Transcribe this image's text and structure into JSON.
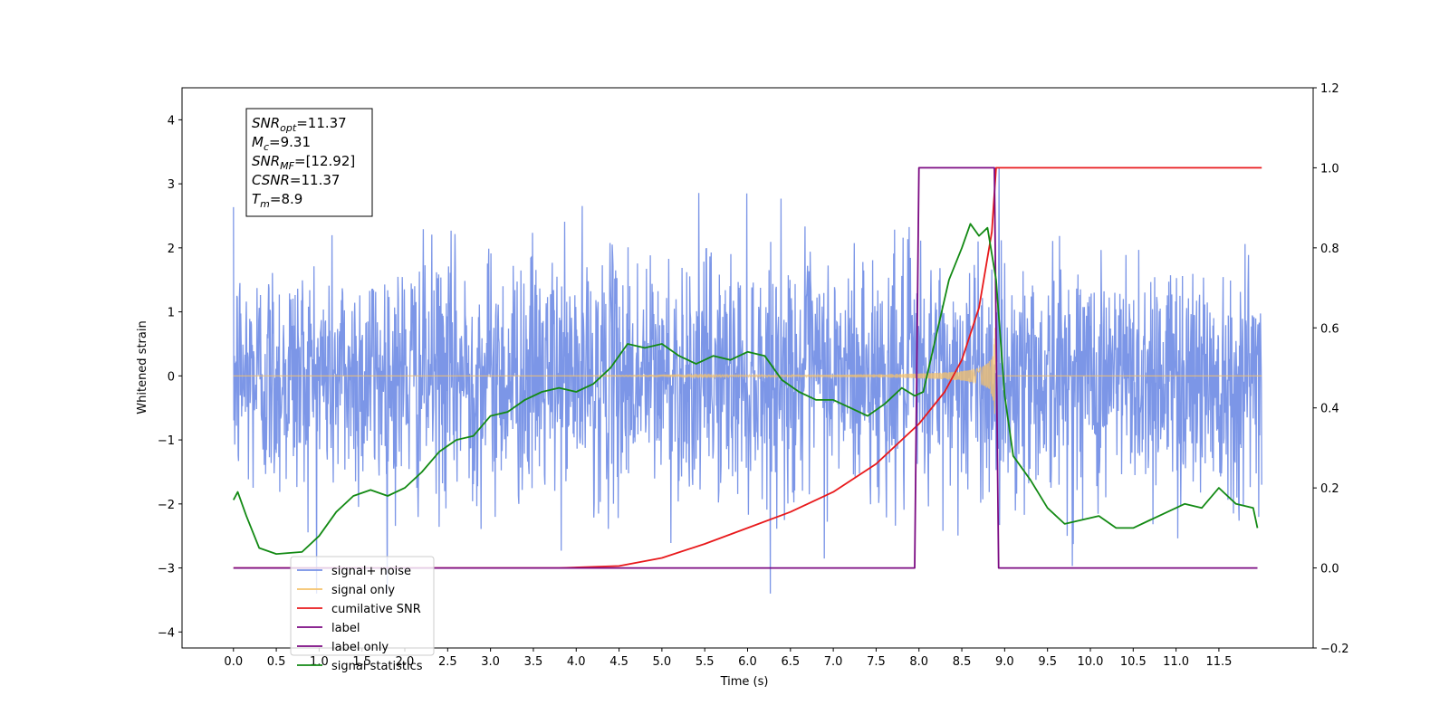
{
  "chart_data": {
    "type": "line",
    "xlabel": "Time (s)",
    "ylabel_left": "Whitened strain",
    "ylim_left": [
      -4.25,
      4.5
    ],
    "ylim_right": [
      -0.2,
      1.2
    ],
    "xlim": [
      -0.6,
      12.6
    ],
    "x_ticks": [
      "0.0",
      "0.5",
      "1.0",
      "1.5",
      "2.0",
      "2.5",
      "3.0",
      "3.5",
      "4.0",
      "4.5",
      "5.0",
      "5.5",
      "6.0",
      "6.5",
      "7.0",
      "7.5",
      "8.0",
      "8.5",
      "9.0",
      "9.5",
      "10.0",
      "10.5",
      "11.0",
      "11.5"
    ],
    "x_tick_values": [
      0.0,
      0.5,
      1.0,
      1.5,
      2.0,
      2.5,
      3.0,
      3.5,
      4.0,
      4.5,
      5.0,
      5.5,
      6.0,
      6.5,
      7.0,
      7.5,
      8.0,
      8.5,
      9.0,
      9.5,
      10.0,
      10.5,
      11.0,
      11.5
    ],
    "y_ticks_left": [
      "−4",
      "−3",
      "−2",
      "−1",
      "0",
      "1",
      "2",
      "3",
      "4"
    ],
    "y_tick_values_left": [
      -4,
      -3,
      -2,
      -1,
      0,
      1,
      2,
      3,
      4
    ],
    "y_ticks_right": [
      "−0.2",
      "0.0",
      "0.2",
      "0.4",
      "0.6",
      "0.8",
      "1.0",
      "1.2"
    ],
    "y_tick_values_right": [
      -0.2,
      0.0,
      0.2,
      0.4,
      0.6,
      0.8,
      1.0,
      1.2
    ],
    "grid": false,
    "legend_position": "bottom-left",
    "annotation": {
      "lines": [
        {
          "sym": "SNR",
          "sub": "opt",
          "val": "=11.37"
        },
        {
          "sym": "M",
          "sub": "c",
          "val": "=9.31"
        },
        {
          "sym": "SNR",
          "sub": "MF",
          "val": "=[12.92]"
        },
        {
          "sym": "CSNR",
          "sub": "",
          "val": "=11.37"
        },
        {
          "sym": "T",
          "sub": "m",
          "val": "=8.9"
        }
      ]
    },
    "series": [
      {
        "name": "signal+ noise",
        "color": "#7590e6",
        "axis": "left",
        "kind": "noise",
        "x_range": [
          0.0,
          12.0
        ],
        "amplitude_std": 0.95
      },
      {
        "name": "signal only",
        "color": "#f5c26b",
        "axis": "left",
        "kind": "chirp",
        "merger_time": 8.9,
        "peak_amplitude": 0.75
      },
      {
        "name": "cumilative SNR",
        "color": "#e8191b",
        "axis": "right",
        "x": [
          0.0,
          3.8,
          4.5,
          5.0,
          5.5,
          6.0,
          6.5,
          7.0,
          7.5,
          8.0,
          8.3,
          8.5,
          8.7,
          8.85,
          8.9,
          12.0
        ],
        "y": [
          0.0,
          0.0,
          0.005,
          0.025,
          0.06,
          0.1,
          0.14,
          0.19,
          0.26,
          0.36,
          0.44,
          0.52,
          0.65,
          0.84,
          1.0,
          1.0
        ]
      },
      {
        "name": "label",
        "color": "#7b0a82",
        "axis": "right",
        "x": [
          0.0,
          7.95,
          8.0,
          8.88,
          8.93,
          11.95
        ],
        "y": [
          0.0,
          0.0,
          1.0,
          1.0,
          0.0,
          0.0
        ]
      },
      {
        "name": "label only",
        "color": "#7b0a82",
        "axis": "right",
        "hidden_in_plot": true
      },
      {
        "name": "signal statistics",
        "color": "#138a14",
        "axis": "right",
        "x": [
          0.0,
          0.05,
          0.15,
          0.3,
          0.5,
          0.8,
          1.0,
          1.2,
          1.4,
          1.6,
          1.8,
          2.0,
          2.2,
          2.4,
          2.6,
          2.8,
          3.0,
          3.2,
          3.4,
          3.6,
          3.8,
          4.0,
          4.2,
          4.4,
          4.6,
          4.8,
          5.0,
          5.2,
          5.4,
          5.6,
          5.8,
          6.0,
          6.2,
          6.4,
          6.6,
          6.8,
          7.0,
          7.2,
          7.4,
          7.6,
          7.8,
          7.95,
          8.05,
          8.2,
          8.35,
          8.5,
          8.6,
          8.7,
          8.8,
          8.9,
          9.0,
          9.1,
          9.3,
          9.5,
          9.7,
          9.9,
          10.1,
          10.3,
          10.5,
          10.7,
          10.9,
          11.1,
          11.3,
          11.5,
          11.7,
          11.9,
          11.95
        ],
        "y": [
          0.17,
          0.19,
          0.13,
          0.05,
          0.035,
          0.04,
          0.08,
          0.14,
          0.18,
          0.195,
          0.18,
          0.2,
          0.24,
          0.29,
          0.32,
          0.33,
          0.38,
          0.39,
          0.42,
          0.44,
          0.45,
          0.44,
          0.46,
          0.5,
          0.56,
          0.55,
          0.56,
          0.53,
          0.51,
          0.53,
          0.52,
          0.54,
          0.53,
          0.47,
          0.44,
          0.42,
          0.42,
          0.4,
          0.38,
          0.41,
          0.45,
          0.43,
          0.44,
          0.58,
          0.72,
          0.8,
          0.86,
          0.83,
          0.85,
          0.72,
          0.43,
          0.28,
          0.22,
          0.15,
          0.11,
          0.12,
          0.13,
          0.1,
          0.1,
          0.12,
          0.14,
          0.16,
          0.15,
          0.2,
          0.16,
          0.15,
          0.1
        ]
      }
    ]
  }
}
